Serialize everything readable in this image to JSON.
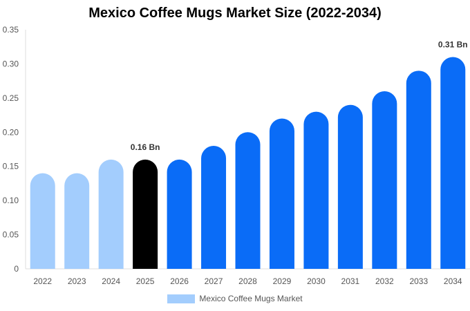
{
  "chart_data": {
    "type": "bar",
    "title": "Mexico Coffee Mugs Market Size (2022-2034)",
    "xlabel": "",
    "ylabel": "",
    "categories": [
      "2022",
      "2023",
      "2024",
      "2025",
      "2026",
      "2027",
      "2028",
      "2029",
      "2030",
      "2031",
      "2032",
      "2033",
      "2034"
    ],
    "series": [
      {
        "name": "Mexico Coffee Mugs Market",
        "values": [
          0.14,
          0.14,
          0.16,
          0.16,
          0.16,
          0.18,
          0.2,
          0.22,
          0.23,
          0.24,
          0.26,
          0.29,
          0.31
        ]
      }
    ],
    "ylim": [
      0,
      0.35
    ],
    "yticks": [
      {
        "value": 0,
        "label": "0"
      },
      {
        "value": 0.05,
        "label": "0.05"
      },
      {
        "value": 0.1,
        "label": "0.10"
      },
      {
        "value": 0.15,
        "label": "0.15"
      },
      {
        "value": 0.2,
        "label": "0.20"
      },
      {
        "value": 0.25,
        "label": "0.25"
      },
      {
        "value": 0.3,
        "label": "0.30"
      },
      {
        "value": 0.35,
        "label": "0.35"
      }
    ],
    "bar_colors": [
      "#a3cdfd",
      "#a3cdfd",
      "#a3cdfd",
      "#000000",
      "#0a6cf7",
      "#0a6cf7",
      "#0a6cf7",
      "#0a6cf7",
      "#0a6cf7",
      "#0a6cf7",
      "#0a6cf7",
      "#0a6cf7",
      "#0a6cf7"
    ],
    "data_labels": [
      {
        "category": "2025",
        "text": "0.16 Bn"
      },
      {
        "category": "2034",
        "text": "0.31 Bn"
      }
    ],
    "grid": false,
    "legend": {
      "position": "bottom",
      "label": "Mexico Coffee Mugs Market",
      "color": "#a3cdfd"
    }
  }
}
